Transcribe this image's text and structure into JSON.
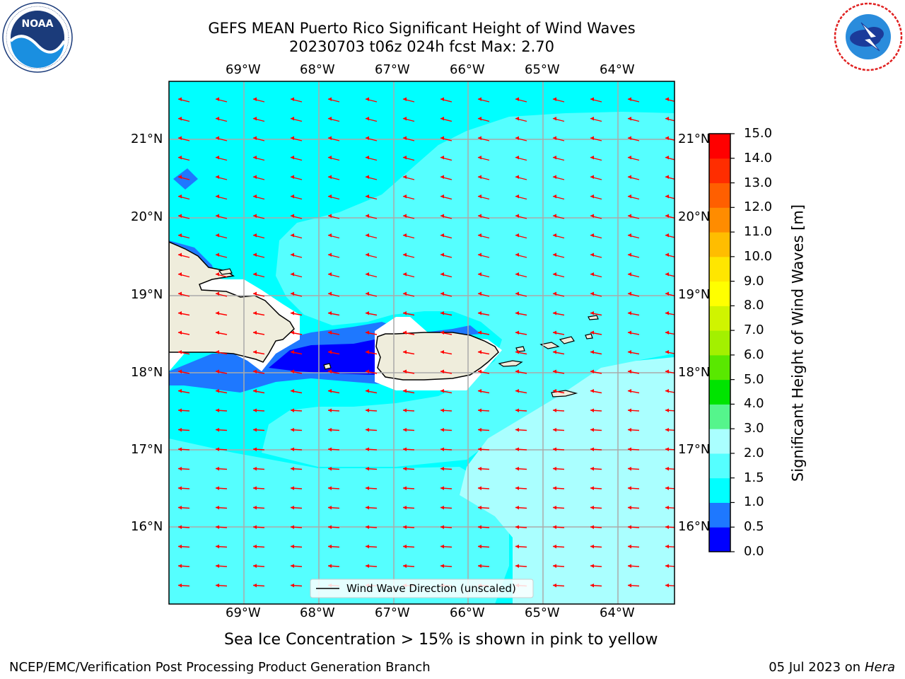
{
  "title_line1": "GEFS MEAN Puerto Rico Significant Height of Wind Waves",
  "title_line2": "20230703 t06z 024h fcst   Max: 2.70",
  "subtitle": "Sea Ice Concentration > 15% is shown in pink to yellow",
  "footer_left": "NCEP/EMC/Verification Post Processing Product Generation Branch",
  "footer_right_date": "05 Jul 2023 on ",
  "footer_right_host": "Hera",
  "logos": {
    "left": "noaa-logo",
    "right": "nws-logo"
  },
  "map": {
    "lon_labels": [
      "69°W",
      "68°W",
      "67°W",
      "66°W",
      "65°W",
      "64°W"
    ],
    "lat_labels": [
      "21°N",
      "20°N",
      "19°N",
      "18°N",
      "17°N",
      "16°N"
    ],
    "legend_label": "Wind Wave Direction (unscaled)",
    "arrow_color": "#ff0000",
    "land_color": "#efeddc"
  },
  "colorbar": {
    "label": "Significant Height of Wind Waves [m]",
    "ticks": [
      "0.0",
      "0.5",
      "1.0",
      "1.5",
      "2.0",
      "3.0",
      "4.0",
      "5.0",
      "6.0",
      "7.0",
      "8.0",
      "9.0",
      "10.0",
      "11.0",
      "12.0",
      "13.0",
      "14.0",
      "15.0"
    ],
    "colors": [
      "#0000ff",
      "#1e78ff",
      "#00ffff",
      "#55ffff",
      "#aaffff",
      "#55f58c",
      "#00e400",
      "#59e800",
      "#a3f000",
      "#d0f400",
      "#ffff00",
      "#ffe600",
      "#ffbd00",
      "#ff8c00",
      "#ff5f00",
      "#ff2d00",
      "#ff0000"
    ]
  }
}
